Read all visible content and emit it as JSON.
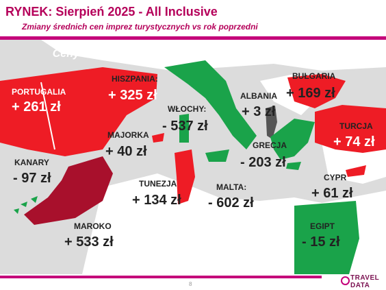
{
  "header": {
    "title": "RYNEK: Sierpień 2025 - All Inclusive",
    "subtitle": "Zmiany średnich cen imprez turystycznych vs rok poprzedni"
  },
  "map": {
    "headline": "Ceny na LATO 2025 (sierpień) vs  LATO 2024 (sierpień)",
    "colors": {
      "sea": "#dcdcdc",
      "land": "#ffffff",
      "increase": "#ee1c25",
      "large_increase": "#a8102c",
      "decrease": "#1aa34a",
      "small_change": "#555555"
    },
    "countries": [
      {
        "name": "PORTUGALIA",
        "value": "+ 261 zł"
      },
      {
        "name": "HISZPANIA:",
        "value": "+ 325 zł"
      },
      {
        "name": "WŁOCHY:",
        "value": "- 537 zł"
      },
      {
        "name": "ALBANIA",
        "value": "+ 3 zł"
      },
      {
        "name": "BUŁGARIA",
        "value": "+ 169 zł"
      },
      {
        "name": "TURCJA",
        "value": "+ 74 zł"
      },
      {
        "name": "MAJORKA",
        "value": "+ 40 zł"
      },
      {
        "name": "GRECJA",
        "value": "- 203 zł"
      },
      {
        "name": "KANARY",
        "value": "- 97 zł"
      },
      {
        "name": "TUNEZJA",
        "value": "+ 134 zł"
      },
      {
        "name": "MALTA:",
        "value": "- 602 zł"
      },
      {
        "name": "CYPR",
        "value": "+ 61 zł"
      },
      {
        "name": "MAROKO",
        "value": "+ 533 zł"
      },
      {
        "name": "EGIPT",
        "value": "- 15 zł"
      }
    ]
  },
  "footer": {
    "page_number": "8",
    "logo_line1": "TRAVEL",
    "logo_line2": "DATA"
  }
}
